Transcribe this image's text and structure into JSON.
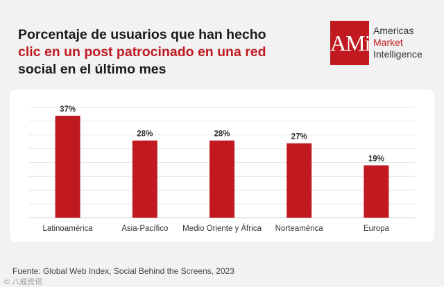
{
  "title": {
    "line1": "Porcentaje de usuarios que han hecho",
    "line2_red": "clic en un post patrocinado en una red",
    "line3": "social en el último mes"
  },
  "logo": {
    "mark": "AMi",
    "line1": "Americas",
    "line2": "Market",
    "line3": "Intelligence"
  },
  "chart_data": {
    "type": "bar",
    "title": "Porcentaje de usuarios que han hecho clic en un post patrocinado en una red social en el último mes",
    "categories": [
      "Latinoamérica",
      "Asia-Pacífico",
      "Medio Oriente y África",
      "Norteamérica",
      "Europa"
    ],
    "values": [
      37,
      28,
      28,
      27,
      19
    ],
    "value_labels": [
      "37%",
      "28%",
      "28%",
      "27%",
      "19%"
    ],
    "ylim": [
      0,
      40
    ],
    "xlabel": "",
    "ylabel": "",
    "grid": true,
    "bar_color": "#c0191f"
  },
  "source": "Fuente: Global Web Index, Social Behind the Screens, 2023",
  "watermark": "© 八戒资讯"
}
